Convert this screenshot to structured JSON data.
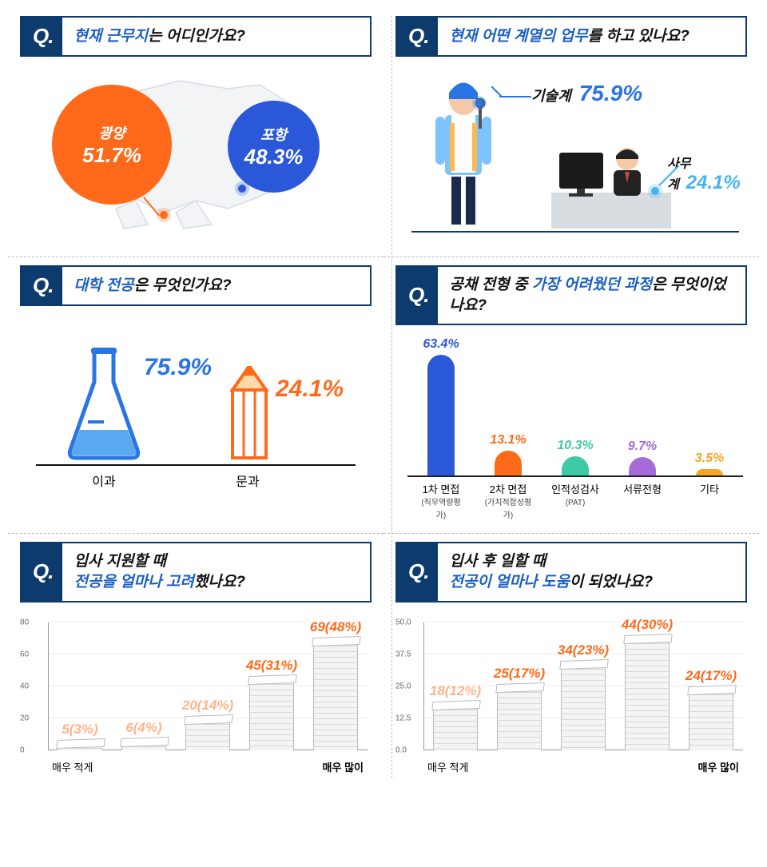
{
  "q_icon": "Q.",
  "colors": {
    "navy": "#0e3b6e",
    "blue": "#1b5fc4",
    "blue_bright": "#2a75e6",
    "orange": "#ff6a1a",
    "teal": "#3ecaa5",
    "purple": "#a56cd9",
    "amber": "#f5a623",
    "grid": "#eeeeee",
    "axis": "#999999",
    "text": "#111111"
  },
  "panel1": {
    "q_highlight": "현재 근무지",
    "q_rest": "는 어디인가요?",
    "bubbles": [
      {
        "name": "광양",
        "pct": "51.7%",
        "color": "#ff6a1a",
        "size": 150,
        "x": 40,
        "y": 20
      },
      {
        "name": "포항",
        "pct": "48.3%",
        "color": "#2a58d8",
        "size": 115,
        "x": 260,
        "y": 40
      }
    ]
  },
  "panel2": {
    "q_highlight": "현재 어떤 계열의 업무",
    "q_rest": "를 하고 있나요?",
    "items": [
      {
        "label": "기술계",
        "pct": "75.9%",
        "color": "#2a75e6"
      },
      {
        "label": "사무계",
        "pct": "24.1%",
        "color": "#44b4f0"
      }
    ]
  },
  "panel3": {
    "q_highlight": "대학 전공",
    "q_rest": "은 무엇인가요?",
    "items": [
      {
        "label": "이과",
        "pct": "75.9%",
        "color": "#2a75e6"
      },
      {
        "label": "문과",
        "pct": "24.1%",
        "color": "#ff6a1a"
      }
    ]
  },
  "panel4": {
    "q_pre": "공채 전형 중 ",
    "q_highlight": "가장 어려웠던 과정",
    "q_rest": "은 무엇이었나요?",
    "ylim_max": 65,
    "bars": [
      {
        "label": "1차 면접",
        "sub": "(직무역량평가)",
        "pct": "63.4%",
        "val": 63.4,
        "color": "#2a58d8"
      },
      {
        "label": "2차 면접",
        "sub": "(가치적합성평가)",
        "pct": "13.1%",
        "val": 13.1,
        "color": "#ff6a1a"
      },
      {
        "label": "인적성검사",
        "sub": "(PAT)",
        "pct": "10.3%",
        "val": 10.3,
        "color": "#3ecaa5"
      },
      {
        "label": "서류전형",
        "sub": "",
        "pct": "9.7%",
        "val": 9.7,
        "color": "#a56cd9"
      },
      {
        "label": "기타",
        "sub": "",
        "pct": "3.5%",
        "val": 3.5,
        "color": "#f5a623"
      }
    ]
  },
  "panel5": {
    "q_pre": "입사 지원할 때",
    "q_highlight": "전공을 얼마나 고려",
    "q_rest": "했나요?",
    "ylim": [
      0,
      80
    ],
    "ytick_step": 20,
    "x_left": "매우 적게",
    "x_right": "매우 많이",
    "value_color": "#ff6a1a",
    "bars": [
      {
        "label": "5(3%)",
        "val": 5,
        "faded": true
      },
      {
        "label": "6(4%)",
        "val": 6,
        "faded": true
      },
      {
        "label": "20(14%)",
        "val": 20,
        "faded": true
      },
      {
        "label": "45(31%)",
        "val": 45,
        "faded": false
      },
      {
        "label": "69(48%)",
        "val": 69,
        "faded": false
      }
    ]
  },
  "panel6": {
    "q_pre": "입사 후 일할 때",
    "q_highlight": "전공이 얼마나 도움",
    "q_rest": "이 되었나요?",
    "ylim": [
      0.0,
      50.0
    ],
    "ytick_step": 12.5,
    "x_left": "매우 적게",
    "x_right": "매우 많이",
    "value_color": "#ff6a1a",
    "bars": [
      {
        "label": "18(12%)",
        "val": 18,
        "faded": true
      },
      {
        "label": "25(17%)",
        "val": 25,
        "faded": false
      },
      {
        "label": "34(23%)",
        "val": 34,
        "faded": false
      },
      {
        "label": "44(30%)",
        "val": 44,
        "faded": false
      },
      {
        "label": "24(17%)",
        "val": 24,
        "faded": false
      }
    ]
  }
}
